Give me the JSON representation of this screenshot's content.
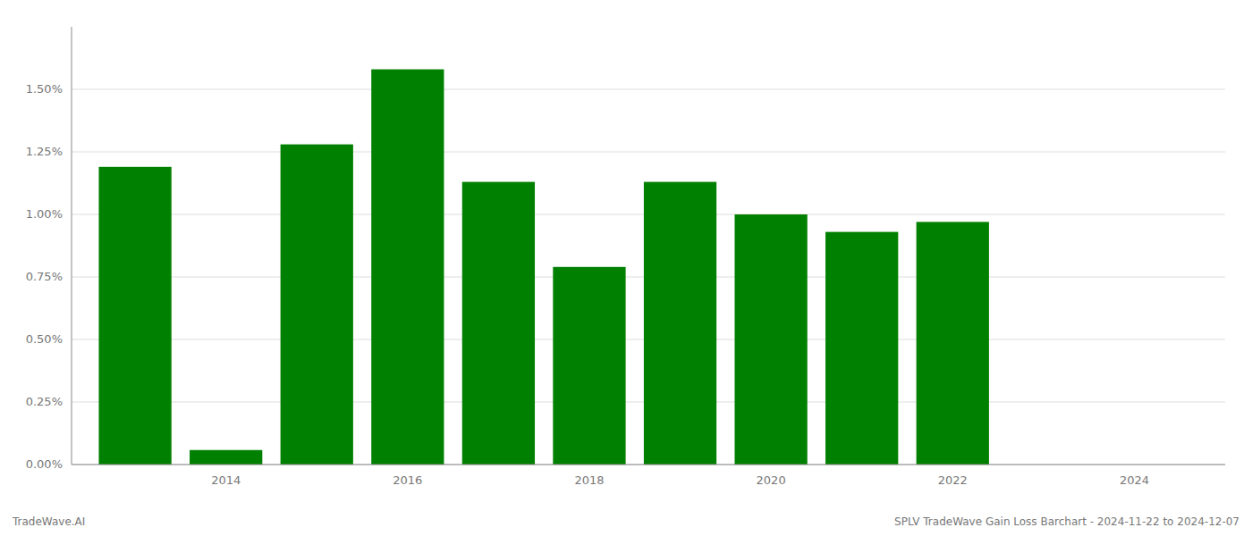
{
  "chart_data": {
    "type": "bar",
    "x": [
      2013,
      2014,
      2015,
      2016,
      2017,
      2018,
      2019,
      2020,
      2021,
      2022,
      2023
    ],
    "values": [
      0.0119,
      0.00058,
      0.0128,
      0.0158,
      0.0113,
      0.0079,
      0.0113,
      0.01,
      0.0093,
      0.0097,
      0.0
    ],
    "color": "#008000",
    "xlim": [
      2012.3,
      2025.0
    ],
    "xticks": [
      2014,
      2016,
      2018,
      2020,
      2022,
      2024
    ],
    "ylim": [
      0,
      0.0175
    ],
    "yticks": [
      {
        "value": 0.0,
        "label": "0.00%"
      },
      {
        "value": 0.0025,
        "label": "0.25%"
      },
      {
        "value": 0.005,
        "label": "0.50%"
      },
      {
        "value": 0.0075,
        "label": "0.75%"
      },
      {
        "value": 0.01,
        "label": "1.00%"
      },
      {
        "value": 0.0125,
        "label": "1.25%"
      },
      {
        "value": 0.015,
        "label": "1.50%"
      }
    ],
    "grid": true,
    "annotations": [
      "TradeWave.AI",
      "SPLV TradeWave Gain Loss Barchart - 2024-11-22 to 2024-12-07"
    ]
  }
}
